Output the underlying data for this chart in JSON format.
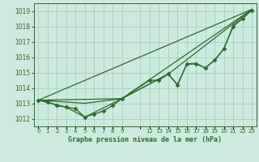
{
  "background_color": "#ceeade",
  "grid_color": "#a8cfc0",
  "line_color": "#2d6a2d",
  "marker_color": "#2d6a2d",
  "title": "Graphe pression niveau de la mer (hPa)",
  "xlim": [
    -0.5,
    23.5
  ],
  "ylim": [
    1011.5,
    1019.5
  ],
  "yticks": [
    1012,
    1013,
    1014,
    1015,
    1016,
    1017,
    1018,
    1019
  ],
  "series": [
    {
      "x": [
        0,
        1,
        2,
        3,
        4,
        5,
        6,
        7,
        8,
        9,
        12,
        13,
        14,
        15,
        16,
        17,
        18,
        19,
        20,
        21,
        22,
        23
      ],
      "y": [
        1013.2,
        1013.1,
        1012.85,
        1012.75,
        1012.65,
        1012.1,
        1012.3,
        1012.5,
        1012.85,
        1013.3,
        1014.5,
        1014.5,
        1014.9,
        1014.2,
        1015.55,
        1015.55,
        1015.3,
        1015.8,
        1016.55,
        1018.0,
        1018.5,
        1019.05
      ],
      "marker": "D",
      "markersize": 2.5,
      "linestyle": "-",
      "linewidth": 1.0
    },
    {
      "x": [
        0,
        5,
        9,
        14,
        15,
        16,
        17,
        18,
        19,
        20,
        21,
        22,
        23
      ],
      "y": [
        1013.2,
        1013.0,
        1013.3,
        1014.9,
        1014.2,
        1015.55,
        1015.6,
        1015.3,
        1015.8,
        1016.55,
        1018.05,
        1018.5,
        1019.1
      ],
      "marker": null,
      "markersize": 0,
      "linestyle": "-",
      "linewidth": 0.9
    },
    {
      "x": [
        0,
        23
      ],
      "y": [
        1013.2,
        1019.1
      ],
      "marker": null,
      "markersize": 0,
      "linestyle": "-",
      "linewidth": 0.9
    },
    {
      "x": [
        0,
        9,
        23
      ],
      "y": [
        1013.2,
        1013.3,
        1019.1
      ],
      "marker": null,
      "markersize": 0,
      "linestyle": "-",
      "linewidth": 0.9
    },
    {
      "x": [
        0,
        3,
        5,
        9,
        14,
        23
      ],
      "y": [
        1013.2,
        1012.75,
        1012.1,
        1013.3,
        1014.9,
        1019.1
      ],
      "marker": null,
      "markersize": 0,
      "linestyle": "-",
      "linewidth": 0.9
    }
  ]
}
